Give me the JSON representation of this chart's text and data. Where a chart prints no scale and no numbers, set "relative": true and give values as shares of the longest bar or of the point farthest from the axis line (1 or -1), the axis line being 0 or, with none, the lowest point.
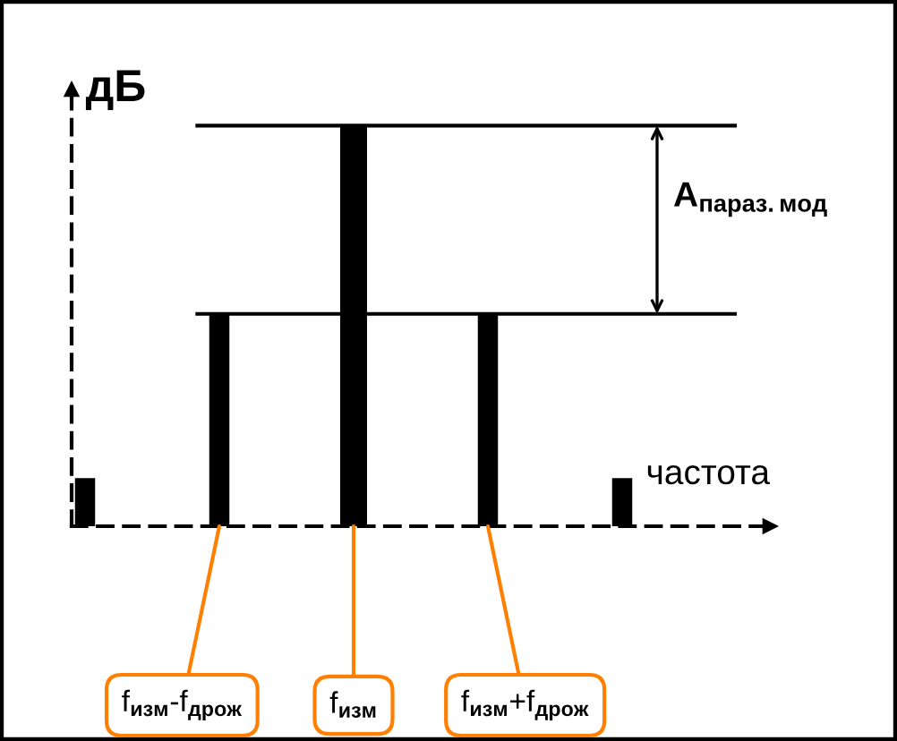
{
  "chart_data": {
    "type": "bar",
    "relative": true,
    "categories": [
      null,
      "f$_{изм}$-f$_{дрож}$",
      "f$_{изм}$",
      "f$_{изм}$+f$_{дрож}$",
      null
    ],
    "values": [
      0.12,
      0.53,
      1,
      0.53,
      0.12
    ],
    "color": "#000000",
    "xlabel": "частота",
    "ylabel": "дБ",
    "ref_lines": [
      {
        "axis": "y",
        "value": 1,
        "label": null
      },
      {
        "axis": "y",
        "value": 0.53,
        "label": null
      }
    ],
    "annotations": [
      "A$_{параз.мод}$"
    ],
    "legend": false
  }
}
